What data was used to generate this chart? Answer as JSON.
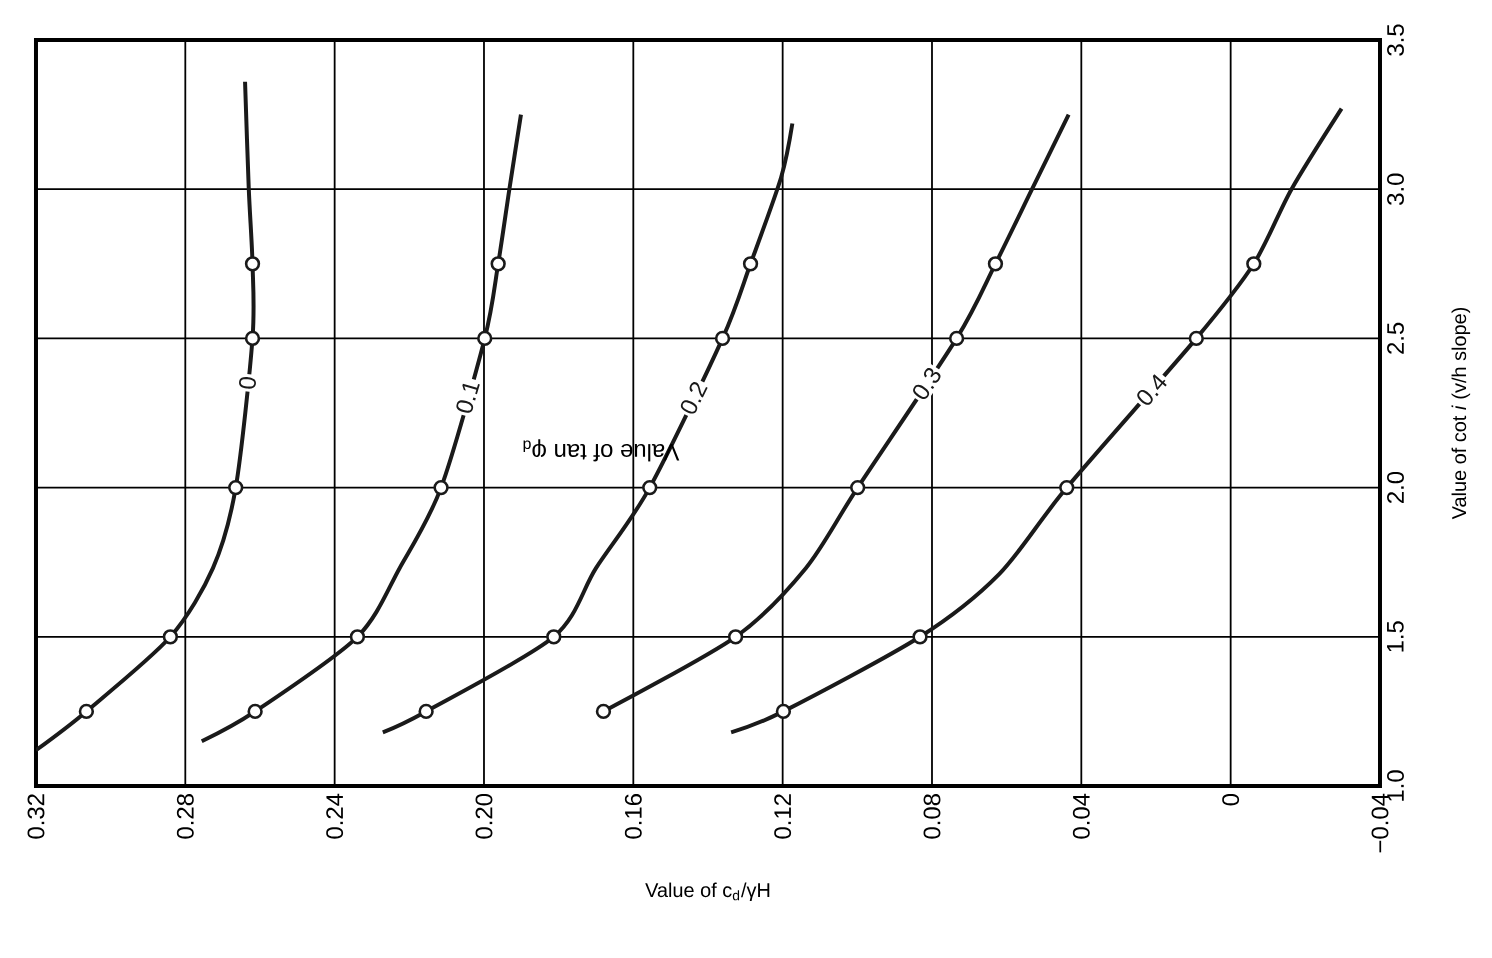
{
  "chart_data": {
    "type": "line",
    "xlabel": "Value of c$_{d}$/γH",
    "ylabel": "Value of cot *i* (v/h slope)",
    "annotations": [
      "Value of tan φ$_{d}$"
    ],
    "xlim": [
      0.32,
      -0.04
    ],
    "xticks": [
      0.32,
      0.28,
      0.24,
      {
        "value": 0.2,
        "label": "0.20"
      },
      0.16,
      0.12,
      0.08,
      0.04,
      0,
      {
        "value": -0.04,
        "label": "−0.04"
      }
    ],
    "ylim": [
      1,
      3.5
    ],
    "yticks": [
      {
        "value": 1,
        "label": "1.0"
      },
      1.5,
      {
        "value": 2,
        "label": "2.0"
      },
      2.5,
      {
        "value": 3,
        "label": "3.0"
      },
      3.5
    ],
    "grid": true,
    "legend": false,
    "series": [
      {
        "name": "0",
        "color": "#1a1a1a",
        "marker": "none",
        "x": [
          0.32,
          0.3065,
          0.284,
          0.2726,
          0.2665,
          0.262,
          0.262,
          0.263,
          0.264
        ],
        "values": [
          1.12,
          1.25,
          1.5,
          1.73,
          2.0,
          2.5,
          2.75,
          3.0,
          3.36
        ]
      },
      {
        "name": "0.1",
        "color": "#1a1a1a",
        "marker": "none",
        "x": [
          0.2756,
          0.2613,
          0.2339,
          0.2226,
          0.2115,
          0.1998,
          0.1962,
          0.1932,
          0.1901
        ],
        "values": [
          1.15,
          1.25,
          1.5,
          1.73,
          2.0,
          2.5,
          2.75,
          3.0,
          3.25
        ]
      },
      {
        "name": "0.2",
        "color": "#1a1a1a",
        "marker": "none",
        "x": [
          0.2271,
          0.2155,
          0.1813,
          0.17,
          0.1556,
          0.1361,
          0.1286,
          0.1204,
          0.1174
        ],
        "values": [
          1.18,
          1.25,
          1.5,
          1.73,
          2.0,
          2.5,
          2.75,
          3.04,
          3.22
        ]
      },
      {
        "name": "0.3",
        "color": "#1a1a1a",
        "marker": "none",
        "x": [
          0.168,
          0.1326,
          0.1138,
          0.0999,
          0.0734,
          0.063,
          0.0532,
          0.0434
        ],
        "values": [
          1.25,
          1.5,
          1.73,
          2.0,
          2.5,
          2.75,
          3.0,
          3.25
        ]
      },
      {
        "name": "0.4",
        "color": "#1a1a1a",
        "marker": "none",
        "x": [
          0.1338,
          0.1198,
          0.0832,
          0.062,
          0.0439,
          0.0092,
          -0.0062,
          -0.0163,
          -0.0297
        ],
        "values": [
          1.18,
          1.25,
          1.5,
          1.71,
          2.0,
          2.5,
          2.75,
          3.0,
          3.27
        ]
      },
      {
        "type": "scatter",
        "color": "#1a1a1a",
        "marker": "circle",
        "x": [
          0.3065,
          0.284,
          0.2665,
          0.262,
          0.262
        ],
        "values": [
          1.25,
          1.5,
          2.0,
          2.5,
          2.75
        ]
      },
      {
        "type": "scatter",
        "color": "#1a1a1a",
        "marker": "circle",
        "x": [
          0.2613,
          0.2339,
          0.2115,
          0.1998,
          0.1962
        ],
        "values": [
          1.25,
          1.5,
          2.0,
          2.5,
          2.75
        ]
      },
      {
        "type": "scatter",
        "color": "#1a1a1a",
        "marker": "circle",
        "x": [
          0.2155,
          0.1813,
          0.1556,
          0.1361,
          0.1286
        ],
        "values": [
          1.25,
          1.5,
          2.0,
          2.5,
          2.75
        ]
      },
      {
        "type": "scatter",
        "color": "#1a1a1a",
        "marker": "circle",
        "x": [
          0.168,
          0.1326,
          0.0999,
          0.0734,
          0.063
        ],
        "values": [
          1.25,
          1.5,
          2.0,
          2.5,
          2.75
        ]
      },
      {
        "type": "scatter",
        "color": "#1a1a1a",
        "marker": "circle",
        "x": [
          0.1198,
          0.0832,
          0.0439,
          0.0092,
          -0.0062
        ],
        "values": [
          1.25,
          1.5,
          2.0,
          2.5,
          2.75
        ]
      }
    ]
  }
}
